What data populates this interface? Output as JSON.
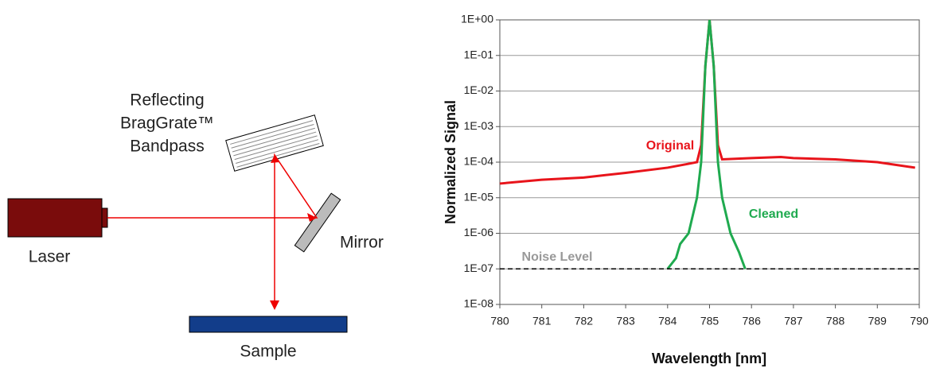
{
  "diagram": {
    "grating_label": [
      "Reflecting",
      "BragGrate™",
      "Bandpass"
    ],
    "mirror_label": "Mirror",
    "laser_label": "Laser",
    "sample_label": "Sample"
  },
  "chart_data": {
    "type": "line",
    "xlabel": "Wavelength [nm]",
    "ylabel": "Normalized Signal",
    "yscale": "log",
    "grid": true,
    "xlim": [
      780,
      790
    ],
    "xticks": [
      780,
      781,
      782,
      783,
      784,
      785,
      786,
      787,
      788,
      789,
      790
    ],
    "ylim": [
      1e-08,
      1
    ],
    "yticks": [
      {
        "value": 1e-08,
        "label": "1E-08"
      },
      {
        "value": 1e-07,
        "label": "1E-07"
      },
      {
        "value": 1e-06,
        "label": "1E-06"
      },
      {
        "value": 1e-05,
        "label": "1E-05"
      },
      {
        "value": 0.0001,
        "label": "1E-04"
      },
      {
        "value": 0.001,
        "label": "1E-03"
      },
      {
        "value": 0.01,
        "label": "1E-02"
      },
      {
        "value": 0.1,
        "label": "1E-01"
      },
      {
        "value": 1,
        "label": "1E+00"
      }
    ],
    "series": [
      {
        "name": "Original",
        "color": "#e8141b",
        "x": [
          780,
          781,
          782,
          783,
          784,
          784.5,
          784.7,
          784.8,
          784.9,
          785,
          785.1,
          785.2,
          785.3,
          786,
          786.7,
          787,
          788,
          789,
          789.9
        ],
        "values": [
          2.5e-05,
          3.2e-05,
          3.7e-05,
          5e-05,
          7e-05,
          9e-05,
          0.0001,
          0.0003,
          0.05,
          1,
          0.05,
          0.0003,
          0.00012,
          0.00013,
          0.00014,
          0.00013,
          0.00012,
          0.0001,
          7e-05
        ]
      },
      {
        "name": "Cleaned",
        "color": "#1faa4f",
        "x": [
          784,
          784.2,
          784.3,
          784.5,
          784.7,
          784.8,
          784.9,
          785,
          785.1,
          785.2,
          785.3,
          785.5,
          785.7,
          785.85
        ],
        "values": [
          1e-07,
          2e-07,
          5e-07,
          1e-06,
          1e-05,
          0.0001,
          0.05,
          1,
          0.05,
          0.0001,
          1e-05,
          1e-06,
          3e-07,
          1e-07
        ]
      },
      {
        "name": "Noise Level",
        "color": "#000000",
        "dashed": true,
        "x": [
          780,
          790
        ],
        "values": [
          1e-07,
          1e-07
        ]
      }
    ]
  }
}
